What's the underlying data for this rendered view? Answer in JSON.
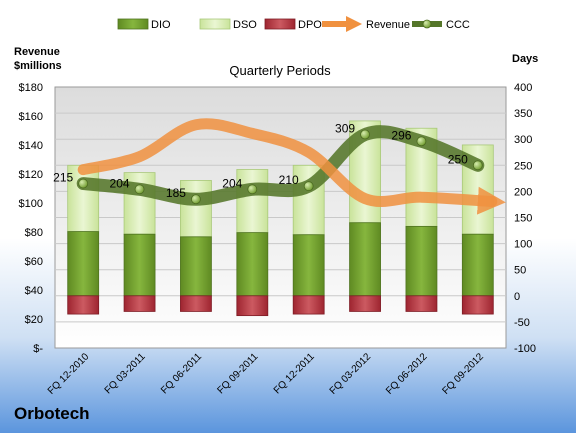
{
  "company": "Orbotech",
  "chart_data": {
    "type": "bar",
    "title": "Quarterly Periods",
    "left_axis_label": [
      "Revenue",
      "$millions"
    ],
    "right_axis_label": "Days",
    "categories": [
      "FQ 12-2010",
      "FQ 03-2011",
      "FQ 06-2011",
      "FQ 09-2011",
      "FQ 12-2011",
      "FQ 03-2012",
      "FQ 06-2012",
      "FQ 09-2012"
    ],
    "left_axis": {
      "min": 0,
      "max": 180,
      "step": 20,
      "tick_labels": [
        "$-",
        "$20",
        "$40",
        "$60",
        "$80",
        "$100",
        "$120",
        "$140",
        "$160",
        "$180"
      ]
    },
    "right_axis": {
      "min": -100,
      "max": 400,
      "step": 50
    },
    "legend": [
      "DIO",
      "DSO",
      "DPO",
      "Revenue",
      "CCC"
    ],
    "legend_position": "top",
    "series": [
      {
        "name": "DIO",
        "kind": "stacked-bar",
        "axis": "right",
        "color": "#6e9a2c",
        "values": [
          123,
          118,
          113,
          121,
          117,
          140,
          133,
          118
        ]
      },
      {
        "name": "DSO",
        "kind": "stacked-bar",
        "axis": "right",
        "color": "#d7ebb0",
        "values": [
          127,
          118,
          108,
          121,
          133,
          195,
          188,
          171
        ]
      },
      {
        "name": "DPO",
        "kind": "negative-bar",
        "axis": "right",
        "color": "#b5303a",
        "values": [
          -35,
          -30,
          -30,
          -38,
          -35,
          -30,
          -30,
          -35
        ]
      },
      {
        "name": "Revenue",
        "kind": "line",
        "axis": "left",
        "color": "#f0913f",
        "values": [
          123,
          132,
          154,
          148,
          135,
          103,
          104,
          101
        ]
      },
      {
        "name": "CCC",
        "kind": "line",
        "axis": "right",
        "color": "#55762a",
        "values": [
          215,
          204,
          185,
          204,
          210,
          309,
          296,
          250
        ],
        "data_labels": [
          "215",
          "204",
          "185",
          "204",
          "210",
          "309",
          "296",
          "250"
        ]
      }
    ]
  }
}
